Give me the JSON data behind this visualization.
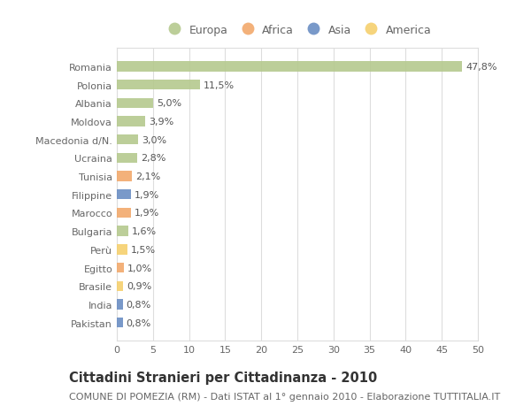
{
  "categories": [
    "Romania",
    "Polonia",
    "Albania",
    "Moldova",
    "Macedonia d/N.",
    "Ucraina",
    "Tunisia",
    "Filippine",
    "Marocco",
    "Bulgaria",
    "Perù",
    "Egitto",
    "Brasile",
    "India",
    "Pakistan"
  ],
  "values": [
    47.8,
    11.5,
    5.0,
    3.9,
    3.0,
    2.8,
    2.1,
    1.9,
    1.9,
    1.6,
    1.5,
    1.0,
    0.9,
    0.8,
    0.8
  ],
  "labels": [
    "47,8%",
    "11,5%",
    "5,0%",
    "3,9%",
    "3,0%",
    "2,8%",
    "2,1%",
    "1,9%",
    "1,9%",
    "1,6%",
    "1,5%",
    "1,0%",
    "0,9%",
    "0,8%",
    "0,8%"
  ],
  "continents": [
    "Europa",
    "Europa",
    "Europa",
    "Europa",
    "Europa",
    "Europa",
    "Africa",
    "Asia",
    "Africa",
    "Europa",
    "America",
    "Africa",
    "America",
    "Asia",
    "Asia"
  ],
  "continent_colors": {
    "Europa": "#b5c98e",
    "Africa": "#f2a96c",
    "Asia": "#6b8ec4",
    "America": "#f5d06e"
  },
  "legend_order": [
    "Europa",
    "Africa",
    "Asia",
    "America"
  ],
  "xlim": [
    0,
    50
  ],
  "xticks": [
    0,
    5,
    10,
    15,
    20,
    25,
    30,
    35,
    40,
    45,
    50
  ],
  "title": "Cittadini Stranieri per Cittadinanza - 2010",
  "subtitle": "COMUNE DI POMEZIA (RM) - Dati ISTAT al 1° gennaio 2010 - Elaborazione TUTTITALIA.IT",
  "background_color": "#ffffff",
  "plot_bg_color": "#f8f8f8",
  "grid_color": "#dddddd",
  "bar_height": 0.55,
  "label_fontsize": 8.0,
  "tick_fontsize": 8.0,
  "title_fontsize": 10.5,
  "subtitle_fontsize": 8.0,
  "label_color": "#555555",
  "tick_color": "#666666"
}
